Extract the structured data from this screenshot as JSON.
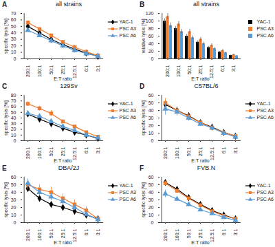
{
  "chart_data": [
    {
      "type": "line",
      "panel": "A",
      "title": "all strains",
      "x_label": "E:T ratio",
      "y_label": "specific lysis [%]",
      "categories": [
        "200:1",
        "100:1",
        "50:1",
        "25:1",
        "12.5:1",
        "6:1",
        "3:1"
      ],
      "ylim": [
        0,
        70
      ],
      "yticks": [
        0,
        10,
        20,
        30,
        40,
        50,
        60,
        70
      ],
      "grid": false,
      "legend": "right",
      "series": [
        {
          "name": "YAC-1",
          "color": "#000000",
          "marker": "diamond",
          "values": [
            50,
            40,
            30,
            22,
            15,
            9,
            4
          ],
          "errors": [
            2,
            2,
            2,
            1.5,
            1,
            1,
            0.5
          ]
        },
        {
          "name": "PSC A3",
          "color": "#ed7d31",
          "marker": "square",
          "values": [
            56,
            46,
            36,
            26,
            18,
            11,
            5
          ],
          "errors": [
            2.5,
            2,
            2,
            1.5,
            1,
            1,
            0.5
          ]
        },
        {
          "name": "PSC A6",
          "color": "#5b9bd5",
          "marker": "triangle",
          "values": [
            44,
            36,
            28,
            20,
            13,
            8,
            4
          ],
          "errors": [
            2,
            2,
            1.5,
            1.5,
            1,
            1,
            0.5
          ]
        }
      ]
    },
    {
      "type": "bar",
      "panel": "B",
      "title": "all strains",
      "x_label": "E:T ratio",
      "y_label": "relative lysis [%]",
      "categories": [
        "200:1",
        "100:1",
        "50:1",
        "25:1",
        "12.5:1",
        "6:1",
        "3:1"
      ],
      "ylim": [
        0,
        120
      ],
      "yticks": [
        0,
        20,
        40,
        60,
        80,
        100,
        120
      ],
      "grid": false,
      "legend": "right",
      "series": [
        {
          "name": "YAC-1",
          "color": "#000000",
          "values": [
            100,
            80,
            60,
            44,
            30,
            18,
            9
          ],
          "errors": [
            6,
            6,
            5,
            4,
            3,
            2,
            1
          ]
        },
        {
          "name": "PSC A3",
          "color": "#ed7d31",
          "values": [
            112,
            92,
            72,
            52,
            36,
            22,
            11
          ],
          "errors": [
            8,
            7,
            6,
            5,
            4,
            3,
            2
          ]
        },
        {
          "name": "PSC A6",
          "color": "#5b9bd5",
          "values": [
            88,
            72,
            56,
            40,
            27,
            16,
            8
          ],
          "errors": [
            7,
            6,
            5,
            4,
            3,
            2,
            1
          ]
        }
      ]
    },
    {
      "type": "line",
      "panel": "C",
      "title": "129Sv",
      "x_label": "E:T ratio",
      "y_label": "specific lysis [%]",
      "categories": [
        "200:1",
        "100:1",
        "50:1",
        "25:1",
        "12.5:1",
        "6:1",
        "3:1"
      ],
      "ylim": [
        0,
        80
      ],
      "yticks": [
        0,
        10,
        20,
        30,
        40,
        50,
        60,
        70,
        80
      ],
      "grid": false,
      "legend": "right",
      "series": [
        {
          "name": "YAC-1",
          "color": "#000000",
          "marker": "diamond",
          "values": [
            47,
            38,
            30,
            22,
            15,
            10,
            4
          ],
          "errors": [
            3,
            2,
            2,
            2,
            1,
            1,
            0.5
          ]
        },
        {
          "name": "PSC A3",
          "color": "#ed7d31",
          "marker": "square",
          "values": [
            65,
            57,
            48,
            34,
            25,
            15,
            7
          ],
          "errors": [
            4,
            4,
            5,
            3,
            2,
            2,
            1
          ]
        },
        {
          "name": "PSC A6",
          "color": "#5b9bd5",
          "marker": "triangle",
          "values": [
            48,
            43,
            34,
            25,
            18,
            10,
            5
          ],
          "errors": [
            3,
            3,
            2,
            2,
            1,
            1,
            0.5
          ]
        }
      ]
    },
    {
      "type": "line",
      "panel": "D",
      "title": "C57BL/6",
      "x_label": "E:T ratio",
      "y_label": "specific lysis [%]",
      "categories": [
        "200:1",
        "100:1",
        "50:1",
        "25:1",
        "12.5:1",
        "6:1",
        "3:1"
      ],
      "ylim": [
        0,
        60
      ],
      "yticks": [
        0,
        10,
        20,
        30,
        40,
        50,
        60
      ],
      "grid": false,
      "legend": "right",
      "series": [
        {
          "name": "YAC-1",
          "color": "#000000",
          "marker": "diamond",
          "values": [
            48,
            40,
            33,
            24,
            18,
            11,
            6
          ],
          "errors": [
            5,
            4,
            4,
            3,
            2,
            1,
            1
          ]
        },
        {
          "name": "PSC A3",
          "color": "#ed7d31",
          "marker": "square",
          "values": [
            50,
            40,
            32,
            24,
            17,
            11,
            6
          ],
          "errors": [
            6,
            5,
            4,
            3,
            2,
            1,
            1
          ]
        },
        {
          "name": "PSC A6",
          "color": "#5b9bd5",
          "marker": "triangle",
          "values": [
            42,
            38,
            30,
            22,
            17,
            10,
            5
          ],
          "errors": [
            8,
            5,
            4,
            3,
            2,
            1,
            1
          ]
        }
      ]
    },
    {
      "type": "line",
      "panel": "E",
      "title": "DBA/2J",
      "x_label": "E:T ratio",
      "y_label": "specific lysis [%]",
      "categories": [
        "200:1",
        "100:1",
        "50:1",
        "25:1",
        "12.5:1",
        "6:1",
        "3:1"
      ],
      "ylim": [
        0,
        60
      ],
      "yticks": [
        0,
        10,
        20,
        30,
        40,
        50,
        60
      ],
      "grid": false,
      "legend": "right",
      "series": [
        {
          "name": "YAC-1",
          "color": "#000000",
          "marker": "diamond",
          "values": [
            45,
            32,
            24,
            20,
            15,
            10,
            5
          ],
          "errors": [
            4,
            3,
            3,
            3,
            2,
            2,
            1
          ]
        },
        {
          "name": "PSC A3",
          "color": "#ed7d31",
          "marker": "square",
          "values": [
            50,
            44,
            40,
            32,
            24,
            16,
            5
          ],
          "errors": [
            6,
            6,
            7,
            6,
            6,
            5,
            3
          ]
        },
        {
          "name": "PSC A6",
          "color": "#5b9bd5",
          "marker": "triangle",
          "values": [
            52,
            40,
            34,
            28,
            20,
            11,
            4
          ],
          "errors": [
            6,
            5,
            5,
            5,
            4,
            3,
            2
          ]
        }
      ]
    },
    {
      "type": "line",
      "panel": "F",
      "title": "FVB.N",
      "x_label": "E:T ratio",
      "y_label": "specific lysis [%]",
      "categories": [
        "200:1",
        "100:1",
        "50:1",
        "25:1",
        "12.5:1",
        "6:1",
        "3:1"
      ],
      "ylim": [
        0,
        60
      ],
      "yticks": [
        0,
        10,
        20,
        30,
        40,
        50,
        60
      ],
      "grid": false,
      "legend": "right",
      "series": [
        {
          "name": "YAC-1",
          "color": "#000000",
          "marker": "diamond",
          "values": [
            53,
            44,
            33,
            24,
            16,
            10,
            5
          ],
          "errors": [
            2,
            2,
            2,
            1,
            1,
            1,
            0.5
          ]
        },
        {
          "name": "PSC A3",
          "color": "#ed7d31",
          "marker": "square",
          "values": [
            52,
            42,
            32,
            23,
            15,
            9,
            5
          ],
          "errors": [
            3,
            2,
            2,
            2,
            1,
            1,
            0.5
          ]
        },
        {
          "name": "PSC A6",
          "color": "#5b9bd5",
          "marker": "triangle",
          "values": [
            38,
            31,
            24,
            17,
            12,
            7,
            3
          ],
          "errors": [
            5,
            3,
            3,
            2,
            2,
            1,
            0.5
          ]
        }
      ]
    }
  ]
}
